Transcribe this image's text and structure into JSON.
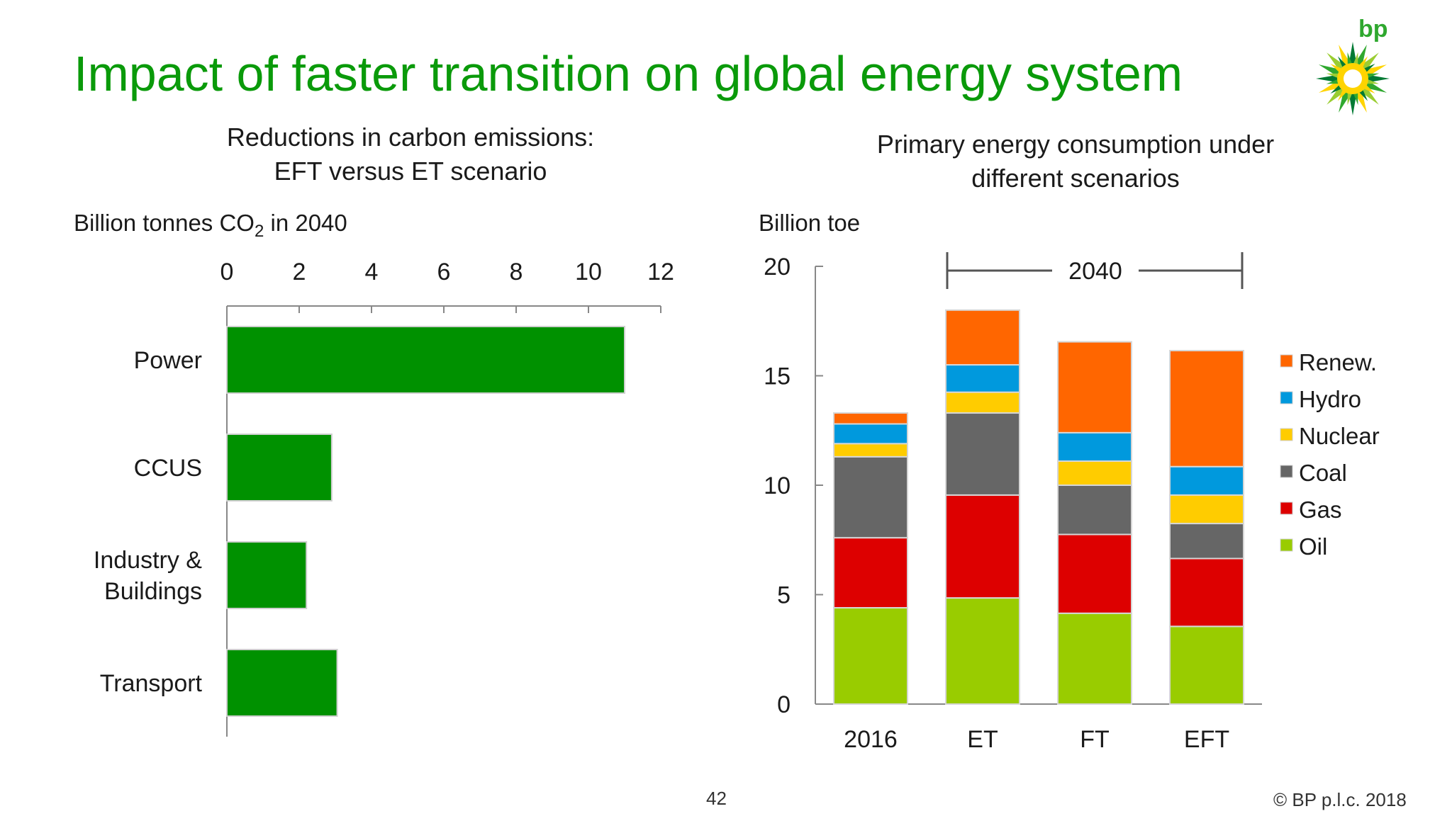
{
  "slide": {
    "title": "Impact of faster transition on global energy system",
    "page_number": "42",
    "copyright": "© BP p.l.c. 2018",
    "logo_text": "bp",
    "accent_color": "#0a9a0a"
  },
  "chart_data": [
    {
      "type": "bar",
      "orientation": "horizontal",
      "title": "Reductions in carbon emissions:\nEFT versus ET scenario",
      "unit_label": "Billion tonnes CO",
      "unit_subscript": "2",
      "unit_suffix": " in 2040",
      "categories": [
        "Power",
        "CCUS",
        "Industry &\nBuildings",
        "Transport"
      ],
      "values": [
        11.0,
        2.9,
        2.2,
        3.05
      ],
      "xlim": [
        0,
        12
      ],
      "xticks": [
        0,
        2,
        4,
        6,
        8,
        10,
        12
      ],
      "xaxis_position": "top",
      "grid": false,
      "bar_color": "#009100"
    },
    {
      "type": "bar",
      "stacked": true,
      "title": "Primary energy consumption under\ndifferent scenarios",
      "ylabel": "Billion toe",
      "categories": [
        "2016",
        "ET",
        "FT",
        "EFT"
      ],
      "bracket_label": "2040",
      "ylim": [
        0,
        20
      ],
      "yticks": [
        0,
        5,
        10,
        15,
        20
      ],
      "grid": false,
      "legend_position": "right",
      "series": [
        {
          "name": "Oil",
          "color": "#99cc00",
          "values": [
            4.4,
            4.85,
            4.15,
            3.55
          ]
        },
        {
          "name": "Gas",
          "color": "#dd0000",
          "values": [
            3.2,
            4.7,
            3.6,
            3.1
          ]
        },
        {
          "name": "Coal",
          "color": "#666666",
          "values": [
            3.7,
            3.75,
            2.25,
            1.6
          ]
        },
        {
          "name": "Nuclear",
          "color": "#ffcc00",
          "values": [
            0.6,
            0.95,
            1.1,
            1.3
          ]
        },
        {
          "name": "Hydro",
          "color": "#0099dd",
          "values": [
            0.9,
            1.25,
            1.3,
            1.3
          ]
        },
        {
          "name": "Renew.",
          "color": "#ff6600",
          "values": [
            0.5,
            2.5,
            4.15,
            5.3
          ]
        }
      ]
    }
  ]
}
